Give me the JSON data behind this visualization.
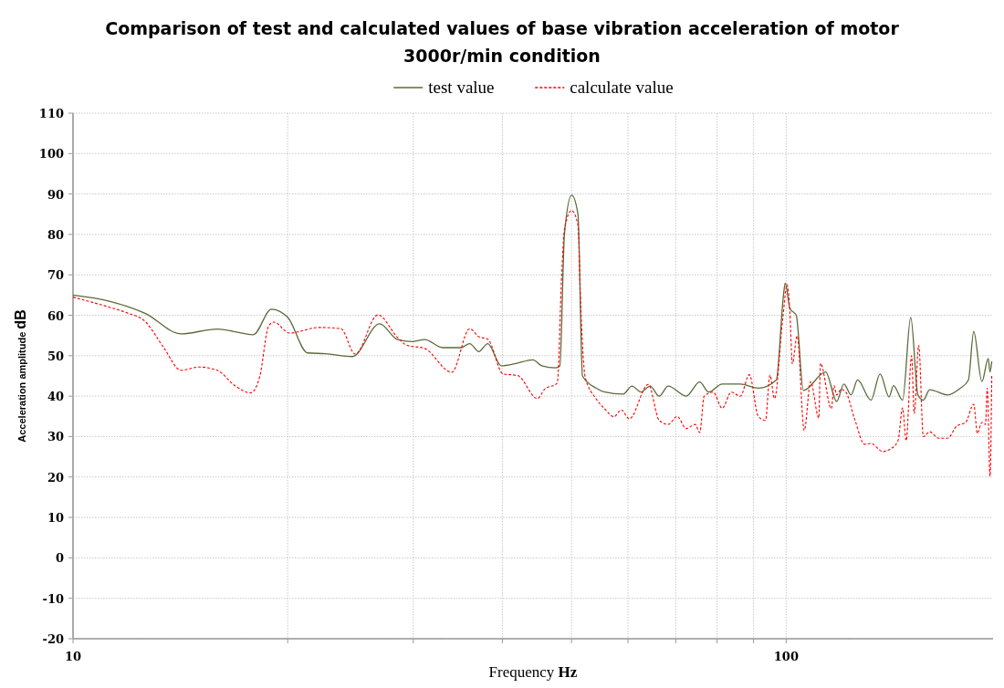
{
  "chart_data": {
    "type": "line",
    "title": "Comparison of test and calculated values of base vibration acceleration of motor 3000r/min condition",
    "xlabel": "Frequency Hz",
    "ylabel": "Acceleration amplitude dB",
    "log": "x",
    "grid": true,
    "legend": "top",
    "xlim": [
      10,
      195
    ],
    "ylim": [
      -20,
      110
    ],
    "xticks": [
      10,
      {
        "value": 20,
        "label": null
      },
      {
        "value": 30,
        "label": null
      },
      {
        "value": 40,
        "label": null
      },
      {
        "value": 50,
        "label": null
      },
      {
        "value": 60,
        "label": null
      },
      {
        "value": 70,
        "label": null
      },
      {
        "value": 80,
        "label": null
      },
      {
        "value": 90,
        "label": null
      },
      100
    ],
    "yticks": [
      -20,
      -10,
      0,
      10,
      20,
      30,
      40,
      50,
      60,
      70,
      80,
      90,
      100,
      110
    ],
    "series": [
      {
        "name": "test value",
        "color": "#5a6b3a",
        "line_style": "solid",
        "x": [
          10,
          11.24,
          12.62,
          14.18,
          15.93,
          17.9,
          18.97,
          20,
          21.32,
          22.59,
          24.65,
          26.91,
          28.52,
          29.97,
          31.12,
          32.99,
          34.97,
          36,
          37.07,
          38.15,
          39.86,
          41.64,
          44.14,
          45.44,
          47.47,
          48.16,
          48.87,
          50.02,
          51.05,
          51.8,
          54.1,
          55.7,
          59.05,
          60.79,
          62.59,
          64.45,
          66.36,
          68.32,
          72.4,
          75.63,
          77.87,
          81.34,
          86.23,
          91.38,
          96.85,
          99.13,
          99.7,
          101.2,
          103.3,
          105.7,
          113.6,
          117.7,
          120.5,
          123.3,
          125.9,
          131.5,
          135.4,
          139.4,
          141.4,
          145.6,
          149.5,
          153,
          155.7,
          158.9,
          168.4,
          174.9,
          180.1,
          183.2,
          188.1,
          192,
          193.1,
          194.2
        ],
        "values": [
          65,
          63.5,
          60.5,
          55.4,
          56.6,
          55.2,
          61.5,
          59.5,
          50.7,
          50.5,
          49.8,
          57.9,
          54,
          53.5,
          54,
          52,
          52,
          53,
          51,
          53,
          47.5,
          48,
          49,
          47.5,
          47,
          47.5,
          80,
          89.7,
          85,
          45,
          42,
          41,
          40.5,
          42.5,
          41,
          42.5,
          40,
          42.5,
          40,
          43.5,
          41,
          43,
          43,
          42,
          44,
          65,
          68,
          61.7,
          60,
          41.4,
          46,
          38.7,
          43,
          40.3,
          44,
          39,
          45.5,
          39.8,
          42.6,
          39,
          59.5,
          40.3,
          39,
          41.6,
          40.3,
          41.8,
          44,
          56,
          43.6,
          49.3,
          46,
          48.6
        ]
      },
      {
        "name": "calculate value",
        "color": "#ff0000",
        "line_style": "dashed",
        "x": [
          10,
          11.24,
          11.91,
          12.62,
          13.38,
          14.18,
          15.03,
          15.93,
          16.89,
          17.75,
          18.27,
          18.81,
          19.14,
          20.11,
          22.14,
          23.74,
          24.87,
          26.76,
          28.52,
          29.37,
          31.12,
          33.96,
          36,
          37.07,
          38.15,
          40.09,
          42,
          44.79,
          45.84,
          47.75,
          48.44,
          48.87,
          50.02,
          51.05,
          51.5,
          52.25,
          54.1,
          55.7,
          57.35,
          58.7,
          60.26,
          64.07,
          66.36,
          68.32,
          70.31,
          72.4,
          74.54,
          75.63,
          76.74,
          79,
          81.34,
          83.76,
          86.23,
          88.78,
          91.38,
          93.52,
          94.89,
          96.3,
          98.86,
          100.3,
          101.2,
          102,
          103.6,
          106,
          108.2,
          111.1,
          111.7,
          115.7,
          116.7,
          117.7,
          119.4,
          121.2,
          124.8,
          128.8,
          131.5,
          136.6,
          140.2,
          143.5,
          145.6,
          147.3,
          149.9,
          151.2,
          153.4,
          155.7,
          158.9,
          163.6,
          168.4,
          173.4,
          178.5,
          183.2,
          185.4,
          188.1,
          190.3,
          191.4,
          193.1,
          194.2
        ],
        "values": [
          64.5,
          62,
          60.6,
          58.5,
          52.2,
          46.4,
          47.2,
          46.4,
          42.5,
          40.8,
          44.8,
          57.4,
          58.3,
          55.6,
          57,
          56.7,
          50.4,
          60.1,
          54.5,
          52.6,
          51.8,
          45.9,
          56.7,
          54.7,
          54.1,
          45.5,
          45.1,
          39.4,
          41.7,
          43.2,
          70,
          81.3,
          85.9,
          82.3,
          62.8,
          44.8,
          39.4,
          36.8,
          34.9,
          36.6,
          34.4,
          42.9,
          34,
          33,
          35,
          32,
          33,
          31,
          40,
          41,
          37,
          41,
          40,
          45.3,
          35,
          34,
          45.2,
          39.4,
          59,
          67.6,
          60.8,
          48,
          54.9,
          31.5,
          43.6,
          34.6,
          48.1,
          36.9,
          42.6,
          40.3,
          41.7,
          41,
          34.2,
          28.1,
          28.3,
          26.3,
          27,
          29,
          37.1,
          29,
          50,
          35.7,
          52.6,
          30,
          31.2,
          29.6,
          29.6,
          32.6,
          33.5,
          38,
          30.8,
          33.5,
          33,
          42,
          20.2,
          45.4
        ]
      }
    ]
  }
}
